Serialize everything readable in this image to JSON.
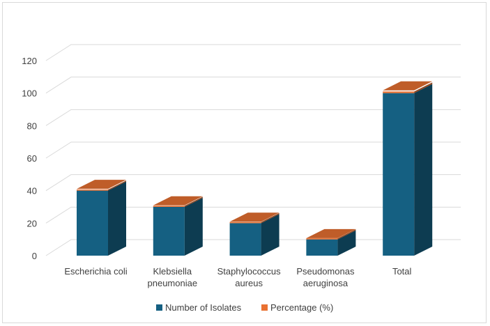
{
  "chart_data": {
    "type": "bar",
    "style": "3d-stacked-column",
    "title": "",
    "xlabel": "",
    "ylabel": "",
    "ylim": [
      0,
      120
    ],
    "yticks": [
      0,
      20,
      40,
      60,
      80,
      100,
      120
    ],
    "grid": true,
    "legend": "bottom",
    "categories": [
      [
        "Escherichia coli"
      ],
      [
        "Klebsiella",
        "pneumoniae"
      ],
      [
        "Staphylococcus",
        "aureus"
      ],
      [
        "Pseudomonas",
        "aeruginosa"
      ],
      [
        "Total"
      ]
    ],
    "series": [
      {
        "name": "Number of Isolates",
        "color": "#156082",
        "values": [
          40,
          30,
          20,
          10,
          100
        ]
      },
      {
        "name": "Percentage (%)",
        "color": "#e97132",
        "values": [
          0.4,
          0.3,
          0.2,
          0.1,
          1.0
        ]
      }
    ]
  }
}
